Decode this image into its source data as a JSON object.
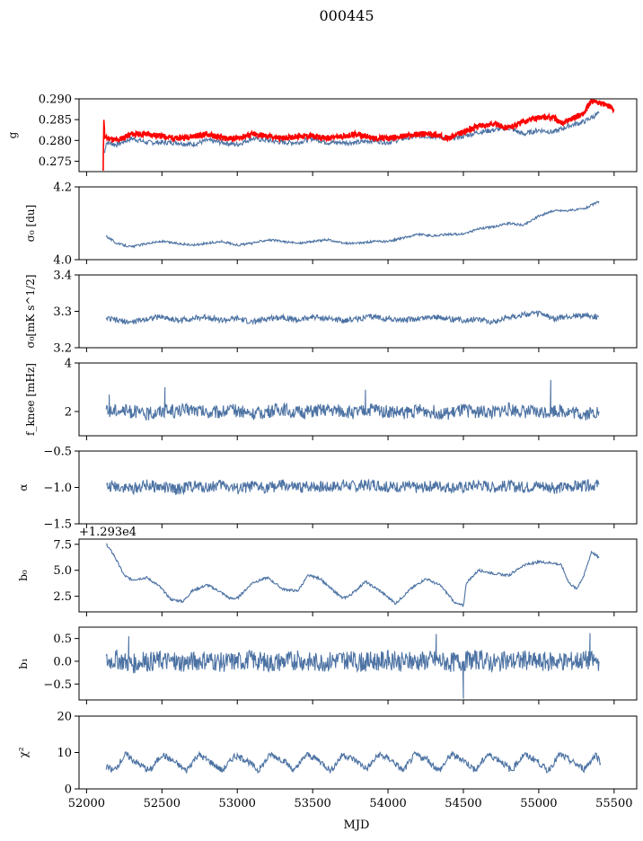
{
  "chart_data": {
    "type": "line",
    "title": "000445",
    "xlabel": "MJD",
    "xlim": [
      51950,
      55650
    ],
    "x_ticks": [
      52000,
      52500,
      53000,
      53500,
      54000,
      54500,
      55000,
      55500
    ],
    "x_tick_labels": [
      "52000",
      "52500",
      "53000",
      "53500",
      "54000",
      "54500",
      "55000",
      "55500"
    ],
    "series_color": "#4c72a3",
    "highlight_color": "#ff0000",
    "panels": [
      {
        "key": "g",
        "ylabel": "g",
        "ylim": [
          0.2725,
          0.29
        ],
        "y_ticks": [
          0.275,
          0.28,
          0.285,
          0.29
        ],
        "y_tick_labels": [
          "0.275",
          "0.280",
          "0.285",
          "0.290"
        ],
        "x": [
          52120,
          52130,
          52200,
          52300,
          52400,
          52500,
          52600,
          52700,
          52800,
          52900,
          53000,
          53100,
          53200,
          53300,
          53400,
          53500,
          53600,
          53700,
          53800,
          53900,
          54000,
          54100,
          54200,
          54300,
          54400,
          54500,
          54600,
          54700,
          54800,
          54900,
          55000,
          55100,
          55200,
          55300,
          55400
        ],
        "values": [
          0.277,
          0.2795,
          0.279,
          0.2805,
          0.2795,
          0.2795,
          0.2795,
          0.279,
          0.28,
          0.2795,
          0.279,
          0.2805,
          0.28,
          0.2795,
          0.2795,
          0.2805,
          0.2795,
          0.2795,
          0.2795,
          0.28,
          0.2795,
          0.2805,
          0.281,
          0.281,
          0.2805,
          0.281,
          0.282,
          0.2825,
          0.283,
          0.2815,
          0.2825,
          0.282,
          0.2835,
          0.2845,
          0.2865
        ],
        "highlight": {
          "x": [
            52110,
            52115,
            52120,
            52130,
            52150,
            52200,
            52300,
            52400,
            52500,
            52600,
            52700,
            52800,
            52900,
            53000,
            53100,
            53200,
            53300,
            53400,
            53500,
            53600,
            53700,
            53800,
            53900,
            54000,
            54100,
            54200,
            54300,
            54400,
            54500,
            54600,
            54700,
            54800,
            54900,
            55000,
            55100,
            55150,
            55200,
            55300,
            55350,
            55400,
            55450,
            55500
          ],
          "values": [
            0.2725,
            0.2855,
            0.281,
            0.2805,
            0.2805,
            0.28,
            0.2815,
            0.2815,
            0.281,
            0.2805,
            0.281,
            0.2815,
            0.2805,
            0.2805,
            0.2815,
            0.281,
            0.2805,
            0.281,
            0.281,
            0.2805,
            0.281,
            0.2815,
            0.2805,
            0.2805,
            0.281,
            0.2815,
            0.2815,
            0.2805,
            0.282,
            0.2835,
            0.284,
            0.283,
            0.2845,
            0.2855,
            0.2855,
            0.284,
            0.285,
            0.2865,
            0.2895,
            0.289,
            0.2885,
            0.2875
          ]
        }
      },
      {
        "key": "sigma0_du",
        "ylabel": "σ₀ [du]",
        "ylim": [
          4.0,
          4.2
        ],
        "y_ticks": [
          4.0,
          4.2
        ],
        "y_tick_labels": [
          "4.0",
          "4.2"
        ],
        "x": [
          52130,
          52200,
          52300,
          52400,
          52500,
          52600,
          52700,
          52800,
          52900,
          53000,
          53100,
          53200,
          53300,
          53400,
          53500,
          53600,
          53700,
          53800,
          53900,
          54000,
          54100,
          54200,
          54300,
          54400,
          54500,
          54600,
          54700,
          54800,
          54900,
          55000,
          55100,
          55200,
          55300,
          55400
        ],
        "values": [
          4.065,
          4.045,
          4.035,
          4.045,
          4.05,
          4.045,
          4.04,
          4.045,
          4.05,
          4.04,
          4.045,
          4.055,
          4.05,
          4.045,
          4.05,
          4.055,
          4.045,
          4.045,
          4.05,
          4.05,
          4.06,
          4.07,
          4.065,
          4.07,
          4.07,
          4.085,
          4.09,
          4.1,
          4.095,
          4.12,
          4.135,
          4.135,
          4.14,
          4.16
        ]
      },
      {
        "key": "sigma0_mk",
        "ylabel": "σ₀[mK s^1/2]",
        "ylim": [
          3.2,
          3.4
        ],
        "y_ticks": [
          3.2,
          3.3,
          3.4
        ],
        "y_tick_labels": [
          "3.2",
          "3.3",
          "3.4"
        ],
        "x": [
          52130,
          52200,
          52300,
          52400,
          52500,
          52600,
          52700,
          52800,
          52900,
          53000,
          53100,
          53200,
          53300,
          53400,
          53500,
          53600,
          53700,
          53800,
          53900,
          54000,
          54100,
          54200,
          54300,
          54400,
          54500,
          54600,
          54700,
          54800,
          54900,
          55000,
          55100,
          55200,
          55300,
          55400
        ],
        "values": [
          3.28,
          3.275,
          3.27,
          3.28,
          3.285,
          3.275,
          3.28,
          3.285,
          3.275,
          3.28,
          3.27,
          3.28,
          3.285,
          3.275,
          3.285,
          3.28,
          3.275,
          3.28,
          3.285,
          3.28,
          3.275,
          3.28,
          3.285,
          3.28,
          3.275,
          3.28,
          3.27,
          3.285,
          3.29,
          3.295,
          3.28,
          3.285,
          3.29,
          3.285
        ]
      },
      {
        "key": "fknee",
        "ylabel": "f_knee [mHz]",
        "ylim": [
          1.0,
          4.0
        ],
        "y_ticks": [
          2,
          4
        ],
        "y_tick_labels": [
          "2",
          "4"
        ],
        "x": [
          52130,
          52200,
          52300,
          52400,
          52500,
          52600,
          52700,
          52800,
          52900,
          53000,
          53100,
          53200,
          53300,
          53400,
          53500,
          53600,
          53700,
          53800,
          53900,
          54000,
          54100,
          54200,
          54300,
          54400,
          54500,
          54600,
          54700,
          54800,
          54900,
          55000,
          55100,
          55200,
          55300,
          55400
        ],
        "values": [
          2.0,
          2.1,
          2.0,
          1.9,
          2.05,
          2.0,
          2.1,
          1.95,
          2.0,
          2.05,
          1.9,
          2.0,
          2.1,
          1.95,
          2.0,
          2.05,
          2.0,
          1.95,
          2.1,
          2.0,
          1.95,
          2.05,
          2.0,
          1.9,
          2.05,
          2.0,
          1.95,
          2.1,
          2.0,
          1.95,
          2.05,
          2.0,
          1.9,
          2.0
        ],
        "spikes": [
          [
            52150,
            2.7
          ],
          [
            52520,
            3.0
          ],
          [
            53850,
            2.9
          ],
          [
            55080,
            3.3
          ]
        ]
      },
      {
        "key": "alpha",
        "ylabel": "α",
        "ylim": [
          -1.5,
          -0.5
        ],
        "y_ticks": [
          -1.5,
          -1.0,
          -0.5
        ],
        "y_tick_labels": [
          "−1.5",
          "−1.0",
          "−0.5"
        ],
        "x": [
          52130,
          52200,
          52300,
          52400,
          52500,
          52600,
          52700,
          52800,
          52900,
          53000,
          53100,
          53200,
          53300,
          53400,
          53500,
          53600,
          53700,
          53800,
          53900,
          54000,
          54100,
          54200,
          54300,
          54400,
          54500,
          54600,
          54700,
          54800,
          54900,
          55000,
          55100,
          55200,
          55300,
          55400
        ],
        "values": [
          -1.0,
          -0.98,
          -1.02,
          -0.97,
          -1.0,
          -1.03,
          -0.98,
          -1.0,
          -0.96,
          -1.02,
          -0.99,
          -1.0,
          -0.97,
          -1.01,
          -0.98,
          -1.0,
          -0.96,
          -0.99,
          -0.95,
          -1.0,
          -0.98,
          -1.01,
          -0.97,
          -0.99,
          -1.0,
          -0.96,
          -1.0,
          -0.98,
          -1.0,
          -0.97,
          -1.01,
          -0.99,
          -0.98,
          -0.96
        ]
      },
      {
        "key": "b0",
        "ylabel": "b₀",
        "ylim": [
          1.0,
          8.0
        ],
        "y_ticks": [
          2.5,
          5.0,
          7.5
        ],
        "y_tick_labels": [
          "2.5",
          "5.0",
          "7.5"
        ],
        "offset_label": "+1.293e4",
        "x": [
          52130,
          52180,
          52250,
          52300,
          52400,
          52480,
          52560,
          52640,
          52700,
          52800,
          52880,
          52950,
          53000,
          53100,
          53200,
          53300,
          53400,
          53470,
          53550,
          53600,
          53700,
          53750,
          53850,
          53950,
          54050,
          54150,
          54250,
          54350,
          54450,
          54500,
          54520,
          54600,
          54700,
          54800,
          54900,
          55000,
          55100,
          55150,
          55200,
          55250,
          55300,
          55350,
          55400
        ],
        "values": [
          7.5,
          6.5,
          4.5,
          4.1,
          4.3,
          3.5,
          2.2,
          2.0,
          3.0,
          3.6,
          3.0,
          2.3,
          2.3,
          3.8,
          4.3,
          3.2,
          3.0,
          4.5,
          4.2,
          3.5,
          2.3,
          2.6,
          3.9,
          3.0,
          1.8,
          3.2,
          4.2,
          3.5,
          1.8,
          1.6,
          3.8,
          5.0,
          4.7,
          4.5,
          5.5,
          5.8,
          5.7,
          5.5,
          3.8,
          3.2,
          4.5,
          6.8,
          6.2
        ]
      },
      {
        "key": "b1",
        "ylabel": "b₁",
        "ylim": [
          -0.85,
          0.75
        ],
        "y_ticks": [
          -0.5,
          0.0,
          0.5
        ],
        "y_tick_labels": [
          "−0.5",
          "0.0",
          "0.5"
        ],
        "x": [
          52130,
          52200,
          52300,
          52400,
          52500,
          52600,
          52700,
          52800,
          52900,
          53000,
          53100,
          53200,
          53300,
          53400,
          53500,
          53600,
          53700,
          53800,
          53900,
          54000,
          54100,
          54200,
          54300,
          54400,
          54500,
          54600,
          54700,
          54800,
          54900,
          55000,
          55100,
          55200,
          55300,
          55400
        ],
        "values": [
          0.0,
          0.05,
          -0.05,
          0.0,
          0.02,
          -0.03,
          0.0,
          0.04,
          -0.02,
          0.0,
          0.03,
          -0.04,
          0.0,
          0.02,
          -0.02,
          0.0,
          0.05,
          -0.03,
          0.0,
          0.02,
          -0.01,
          0.0,
          0.03,
          -0.02,
          0.0,
          0.04,
          -0.03,
          0.0,
          0.02,
          -0.02,
          0.01,
          0.0,
          0.03,
          0.0
        ],
        "spikes": [
          [
            54500,
            -0.82
          ],
          [
            54320,
            0.6
          ],
          [
            55340,
            0.62
          ],
          [
            52280,
            0.55
          ]
        ]
      },
      {
        "key": "chi2",
        "ylabel": "χ²",
        "ylim": [
          0,
          20
        ],
        "y_ticks": [
          0,
          10,
          20
        ],
        "y_tick_labels": [
          "0",
          "10",
          "20"
        ],
        "x": [
          52130,
          52180,
          52260,
          52340,
          52420,
          52500,
          52580,
          52660,
          52740,
          52820,
          52900,
          52980,
          53060,
          53140,
          53220,
          53300,
          53380,
          53460,
          53540,
          53620,
          53700,
          53780,
          53860,
          53940,
          54020,
          54100,
          54180,
          54260,
          54340,
          54420,
          54500,
          54580,
          54660,
          54740,
          54820,
          54900,
          54980,
          55060,
          55140,
          55220,
          55300,
          55380,
          55410
        ],
        "values": [
          6,
          5,
          9.5,
          7,
          5,
          9.5,
          7.5,
          5,
          9.5,
          7.5,
          5,
          9,
          8,
          5,
          9.5,
          8,
          5,
          9.5,
          8,
          5,
          9.5,
          8,
          5.5,
          9.5,
          8,
          5,
          9.5,
          8,
          5,
          9.5,
          8,
          5,
          9.5,
          8,
          5,
          9.5,
          8,
          5,
          9.5,
          7.5,
          5.5,
          9.5,
          7
        ]
      }
    ]
  }
}
